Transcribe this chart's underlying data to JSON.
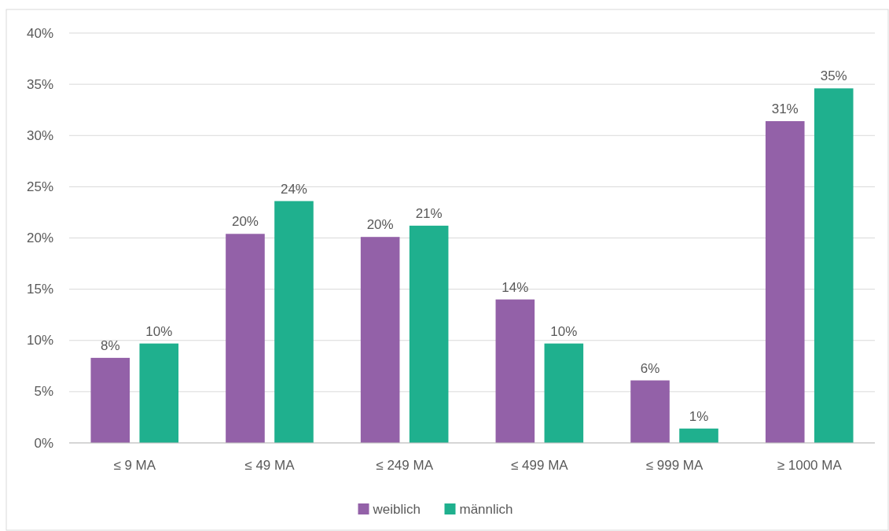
{
  "chart_data": {
    "type": "bar",
    "categories": [
      "≤ 9 MA",
      "≤ 49 MA",
      "≤ 249 MA",
      "≤ 499 MA",
      "≤ 999 MA",
      "≥ 1000 MA"
    ],
    "series": [
      {
        "name": "weiblich",
        "color": "#9361a8",
        "values": [
          8.3,
          20.4,
          20.1,
          14.0,
          6.1,
          31.4
        ],
        "value_labels": [
          "8%",
          "20%",
          "20%",
          "14%",
          "6%",
          "31%"
        ]
      },
      {
        "name": "männlich",
        "color": "#1fb08e",
        "values": [
          9.7,
          23.6,
          21.2,
          9.7,
          1.4,
          34.6
        ],
        "value_labels": [
          "10%",
          "24%",
          "21%",
          "10%",
          "1%",
          "35%"
        ]
      }
    ],
    "ylim": [
      0,
      40
    ],
    "yticks": [
      {
        "value": 0,
        "label": "0%"
      },
      {
        "value": 5,
        "label": "5%"
      },
      {
        "value": 10,
        "label": "10%"
      },
      {
        "value": 15,
        "label": "15%"
      },
      {
        "value": 20,
        "label": "20%"
      },
      {
        "value": 25,
        "label": "25%"
      },
      {
        "value": 30,
        "label": "30%"
      },
      {
        "value": 35,
        "label": "35%"
      },
      {
        "value": 40,
        "label": "40%"
      }
    ],
    "grid": "y",
    "legend": "bottom"
  }
}
